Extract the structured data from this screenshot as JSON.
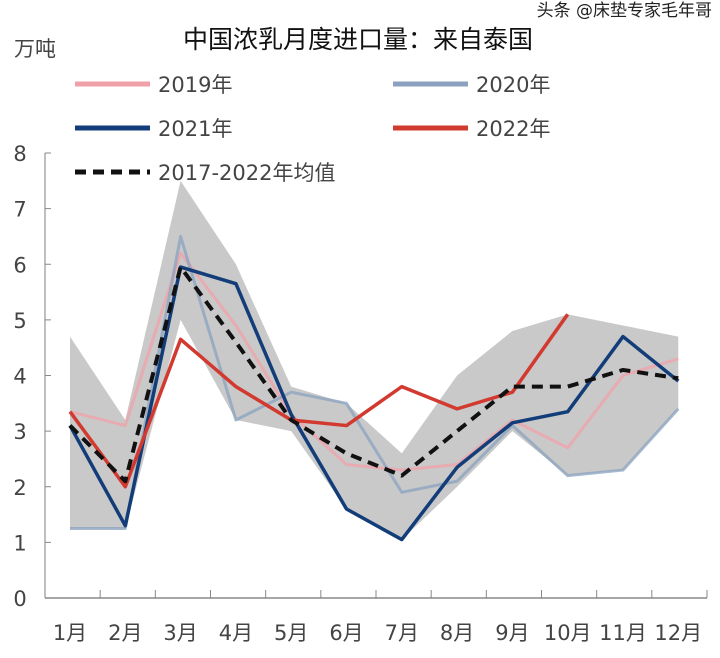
{
  "chart_data": {
    "type": "line",
    "title": "中国浓乳月度进口量：来自泰国",
    "ylabel": "万吨",
    "xlabel": "",
    "categories": [
      "1月",
      "2月",
      "3月",
      "4月",
      "5月",
      "6月",
      "7月",
      "8月",
      "9月",
      "10月",
      "11月",
      "12月"
    ],
    "ylim": [
      0,
      8
    ],
    "yticks": [
      "0",
      "1",
      "2",
      "3",
      "4",
      "5",
      "6",
      "7",
      "8"
    ],
    "grid": false,
    "legend_position": "top",
    "range_band": {
      "color": "#bfbfbf",
      "max": [
        4.7,
        3.2,
        7.5,
        6.0,
        3.8,
        3.5,
        2.6,
        4.0,
        4.8,
        5.1,
        4.9,
        4.7
      ],
      "min": [
        1.25,
        1.25,
        5.0,
        3.2,
        3.0,
        1.6,
        1.05,
        2.0,
        3.0,
        2.2,
        2.3,
        3.4
      ]
    },
    "series": [
      {
        "name": "2019年",
        "color": "#f0a0a8",
        "dash": false,
        "values": [
          3.35,
          3.1,
          6.2,
          4.9,
          3.3,
          2.4,
          2.3,
          2.4,
          3.2,
          2.7,
          4.0,
          4.3
        ]
      },
      {
        "name": "2020年",
        "color": "#8aa2bf",
        "dash": false,
        "values": [
          1.25,
          1.25,
          6.5,
          3.2,
          3.7,
          3.5,
          1.9,
          2.1,
          3.1,
          2.2,
          2.3,
          3.4
        ]
      },
      {
        "name": "2021年",
        "color": "#123d78",
        "dash": false,
        "values": [
          3.1,
          1.3,
          5.95,
          5.65,
          3.3,
          1.6,
          1.05,
          2.35,
          3.15,
          3.35,
          4.7,
          3.9
        ]
      },
      {
        "name": "2022年",
        "color": "#d23a30",
        "dash": false,
        "values": [
          3.35,
          2.0,
          4.65,
          3.8,
          3.2,
          3.1,
          3.8,
          3.4,
          3.7,
          5.1,
          null,
          null
        ]
      },
      {
        "name": "2017-2022年均值",
        "color": "#111111",
        "dash": true,
        "values": [
          3.1,
          2.1,
          5.95,
          4.6,
          3.2,
          2.6,
          2.2,
          3.0,
          3.8,
          3.8,
          4.1,
          3.95
        ]
      }
    ]
  },
  "watermark": "头条 @床垫专家毛年哥"
}
